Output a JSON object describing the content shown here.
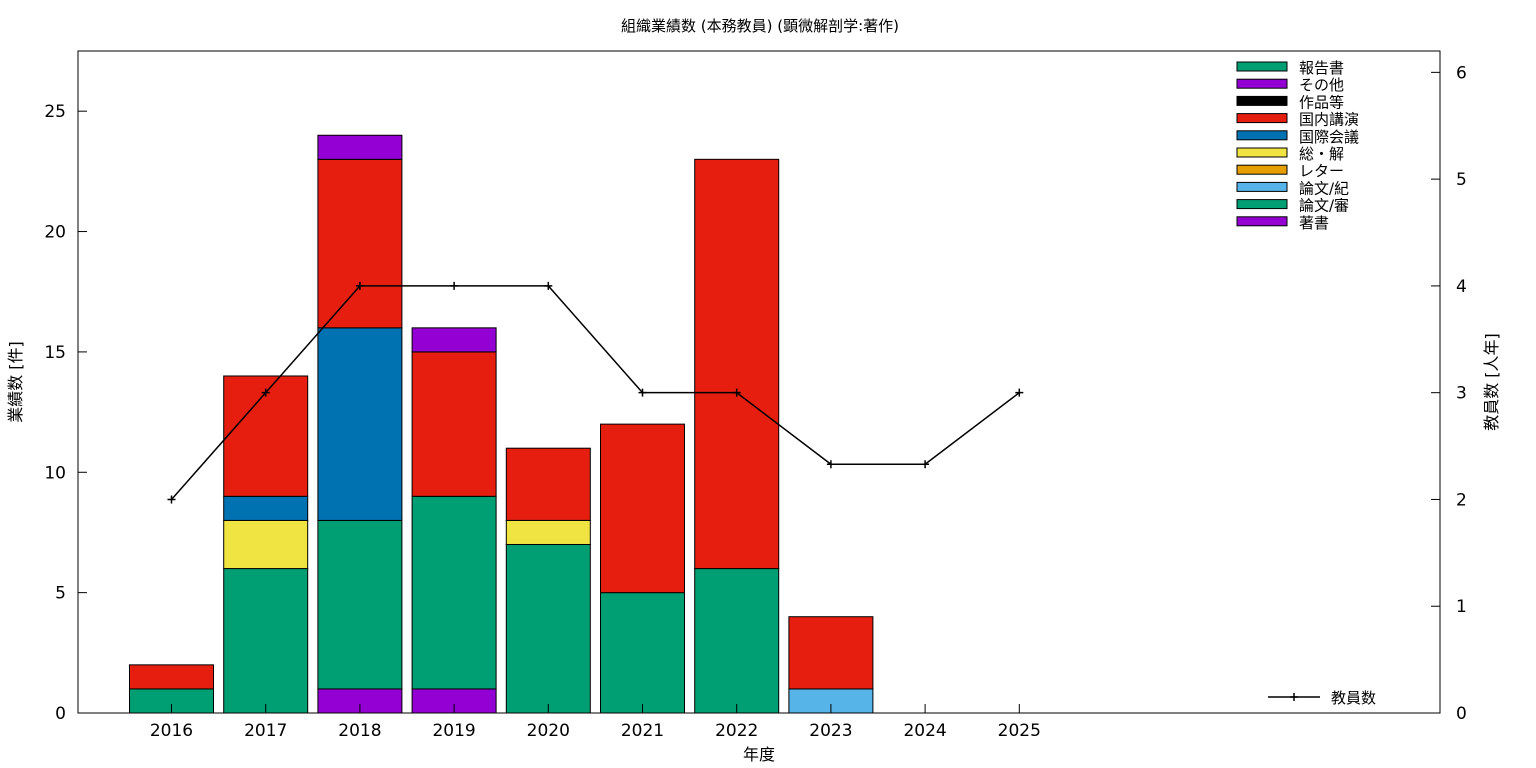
{
  "chart_data": {
    "type": "bar",
    "stacked": true,
    "title": "組織業績数 (本務教員) (顕微解剖学:著作)",
    "xlabel": "年度",
    "ylabel": "業績数 [件]",
    "y2label": "教員数 [人年]",
    "categories": [
      "2016",
      "2017",
      "2018",
      "2019",
      "2020",
      "2021",
      "2022",
      "2023",
      "2024",
      "2025"
    ],
    "ylim": [
      0,
      27.5
    ],
    "yticks": [
      0,
      5,
      10,
      15,
      20,
      25
    ],
    "y2lim": [
      0,
      6.2
    ],
    "y2ticks": [
      0,
      1,
      2,
      3,
      4,
      5,
      6
    ],
    "grid": false,
    "legend_position": "top-right",
    "series": [
      {
        "name": "報告書",
        "color": "#009e73",
        "values": [
          0,
          0,
          0,
          0,
          0,
          0,
          0,
          0,
          0,
          0
        ]
      },
      {
        "name": "その他",
        "color": "#9400d3",
        "values": [
          0,
          0,
          1,
          1,
          0,
          0,
          0,
          0,
          0,
          0
        ]
      },
      {
        "name": "作品等",
        "color": "#000000",
        "values": [
          0,
          0,
          0,
          0,
          0,
          0,
          0,
          0,
          0,
          0
        ]
      },
      {
        "name": "国内講演",
        "color": "#e51e10",
        "values": [
          1,
          5,
          7,
          6,
          3,
          7,
          17,
          3,
          0,
          0
        ]
      },
      {
        "name": "国際会議",
        "color": "#0072b2",
        "values": [
          0,
          1,
          8,
          0,
          0,
          0,
          0,
          0,
          0,
          0
        ]
      },
      {
        "name": "総・解",
        "color": "#f0e442",
        "values": [
          0,
          2,
          0,
          0,
          1,
          0,
          0,
          0,
          0,
          0
        ]
      },
      {
        "name": "レター",
        "color": "#e69f00",
        "values": [
          0,
          0,
          0,
          0,
          0,
          0,
          0,
          0,
          0,
          0
        ]
      },
      {
        "name": "論文/紀",
        "color": "#56b4e9",
        "values": [
          0,
          0,
          0,
          0,
          0,
          0,
          0,
          1,
          0,
          0
        ]
      },
      {
        "name": "論文/審",
        "color": "#009e73",
        "values": [
          1,
          6,
          7,
          8,
          7,
          5,
          6,
          0,
          0,
          0
        ]
      },
      {
        "name": "著書",
        "color": "#9400d3",
        "values": [
          0,
          0,
          1,
          1,
          0,
          0,
          0,
          0,
          0,
          0
        ]
      }
    ],
    "line_series": {
      "name": "教員数",
      "axis": "y2",
      "color": "#000000",
      "values": [
        2,
        3,
        4,
        4,
        4,
        3,
        3,
        2.33,
        2.33,
        3
      ]
    }
  }
}
